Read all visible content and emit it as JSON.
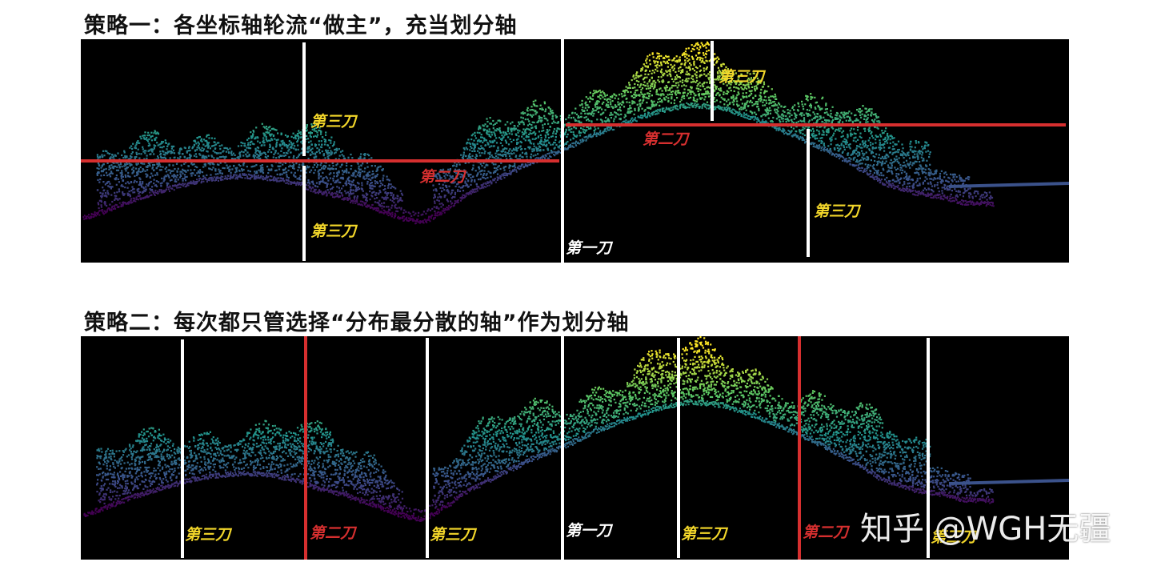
{
  "strategy1": {
    "title": "策略一：各坐标轴轮流“做主”，充当划分轴",
    "labels": {
      "cut1": "第一刀",
      "cut2": "第二刀",
      "cut3_left_upper": "第三刀",
      "cut3_left_lower": "第三刀",
      "cut3_right_upper": "第三刀",
      "cut3_right_lower": "第三刀"
    }
  },
  "strategy2": {
    "title": "策略二：每次都只管选择“分布最分散的轴”作为划分轴",
    "labels": {
      "cut1": "第一刀",
      "cut2_left": "第二刀",
      "cut2_right": "第二刀",
      "cut3_a": "第三刀",
      "cut3_b": "第三刀",
      "cut3_c": "第三刀",
      "cut3_d": "第三刀"
    }
  },
  "watermark": "知乎 @WGH无疆",
  "colors": {
    "background": "#000000",
    "first_cut": "#ffffff",
    "second_cut": "#d62f2f",
    "third_cut": "#ffffff",
    "label_first": "#ffffff",
    "label_second": "#d62f2f",
    "label_third": "#f2d62a"
  }
}
